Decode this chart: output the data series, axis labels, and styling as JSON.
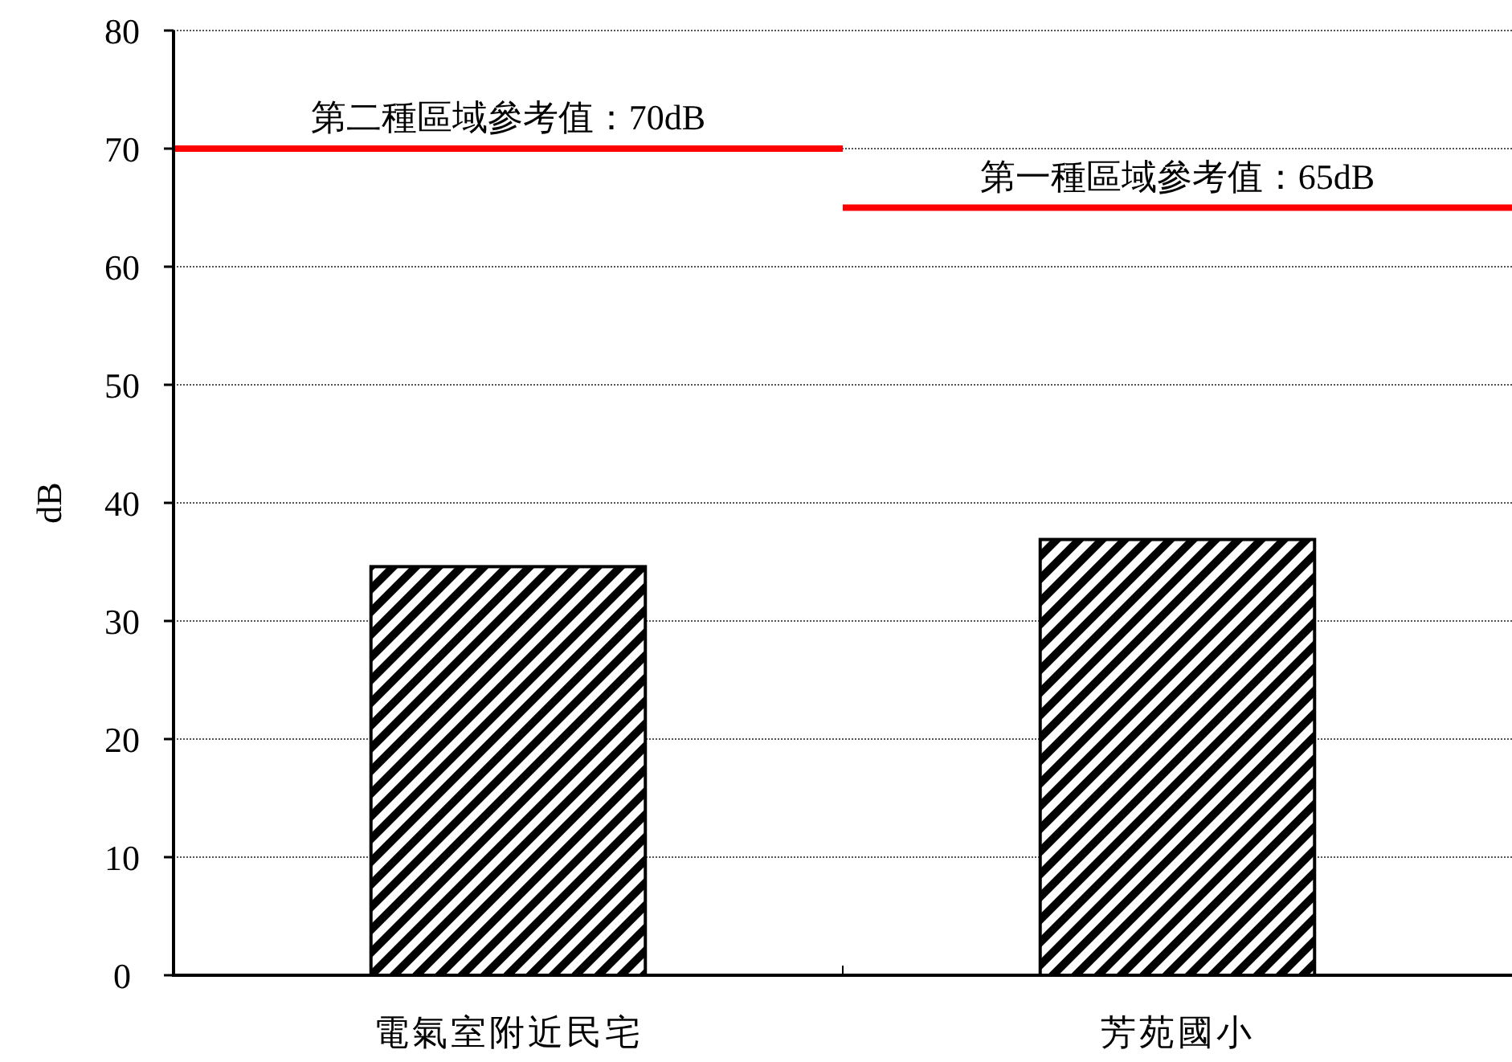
{
  "chart_data": {
    "type": "bar",
    "ylabel": "dB",
    "categories": [
      "電氣室附近民宅",
      "芳苑國小"
    ],
    "values": [
      34.6,
      36.9
    ],
    "color": "#000000",
    "ylim": [
      0,
      80
    ],
    "yticks": [
      0,
      10,
      20,
      30,
      40,
      50,
      60,
      70,
      80
    ],
    "grid": "y",
    "ref_lines": [
      {
        "axis": "y",
        "value": 70,
        "label": "第二種區域參考值：70dB",
        "color": "#ff0000"
      },
      {
        "axis": "y",
        "value": 65,
        "label": "第一種區域參考值：65dB",
        "color": "#ff0000"
      }
    ]
  }
}
